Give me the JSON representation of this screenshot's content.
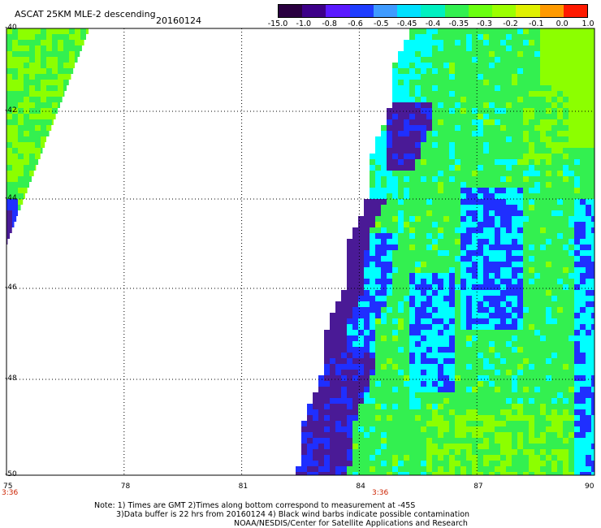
{
  "header": {
    "title": "ASCAT 25KM MLE-2 descending",
    "date": "20160124"
  },
  "colorbar": {
    "tick_labels": [
      "-15.0",
      "-1.0",
      "-0.8",
      "-0.6",
      "-0.5",
      "-0.45",
      "-0.4",
      "-0.35",
      "-0.3",
      "-0.2",
      "-0.1",
      "0.0",
      "1.0"
    ],
    "colors": [
      "#2a0040",
      "#3d0088",
      "#5a1aff",
      "#1f3dff",
      "#3f9bff",
      "#00e0ff",
      "#00f0c0",
      "#33f050",
      "#6aff10",
      "#9cff00",
      "#e0f000",
      "#ff9a00",
      "#ff1a00"
    ]
  },
  "map": {
    "lon_ticks": [
      "75",
      "78",
      "81",
      "84",
      "87",
      "90"
    ],
    "lat_ticks": [
      "-40",
      "-42",
      "-44",
      "-46",
      "-48",
      "-50"
    ],
    "time_labels": [
      "3:36",
      "3:36"
    ],
    "legend_colors": {
      "green": "#33f050",
      "lime": "#8cff00",
      "cyan": "#00ffff",
      "blue": "#1f2fff",
      "purple": "#4a1a96",
      "white": "#ffffff"
    }
  },
  "notes": {
    "line1": "Note: 1) Times are GMT 2)Times along bottom correspond to measurement at -45S",
    "line2": "3)Data buffer is 22 hrs from 20160124 4) Black wind barbs indicate possible contamination",
    "line3": "NOAA/NESDIS/Center for Satellite Applications and Research"
  }
}
